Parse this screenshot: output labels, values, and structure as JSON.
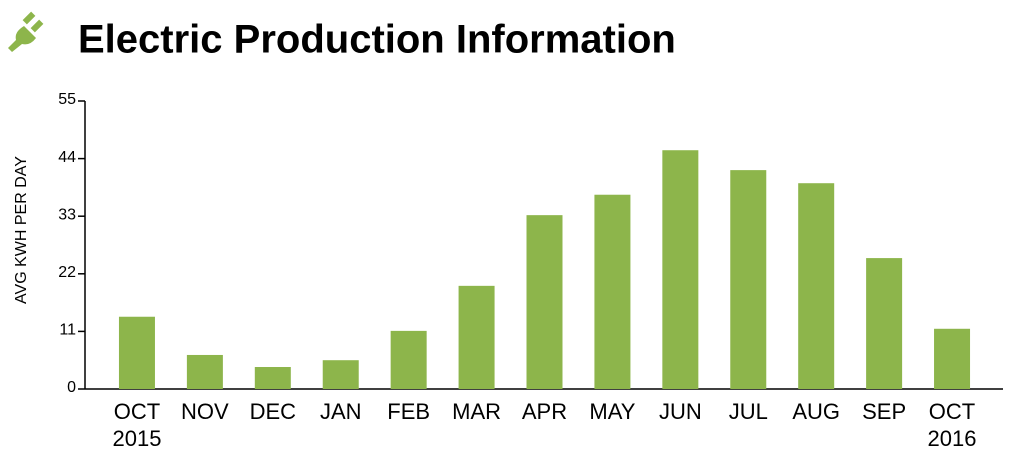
{
  "chart_data": {
    "type": "bar",
    "title": "Electric Production Information",
    "y_label": "AVG  KWH PER DAY",
    "categories": [
      [
        "OCT",
        "2015"
      ],
      "NOV",
      "DEC",
      "JAN",
      "FEB",
      "MAR",
      "APR",
      "MAY",
      "JUN",
      "JUL",
      "AUG",
      "SEP",
      [
        "OCT",
        "2016"
      ]
    ],
    "values": [
      13.8,
      6.5,
      4.2,
      5.5,
      11.1,
      19.7,
      33.2,
      37.1,
      45.6,
      41.8,
      39.3,
      25.0,
      11.5
    ],
    "color": "#8db54b",
    "ylim": [
      0,
      55
    ],
    "yticks": [
      0,
      11,
      22,
      33,
      44,
      55
    ],
    "grid": false
  }
}
